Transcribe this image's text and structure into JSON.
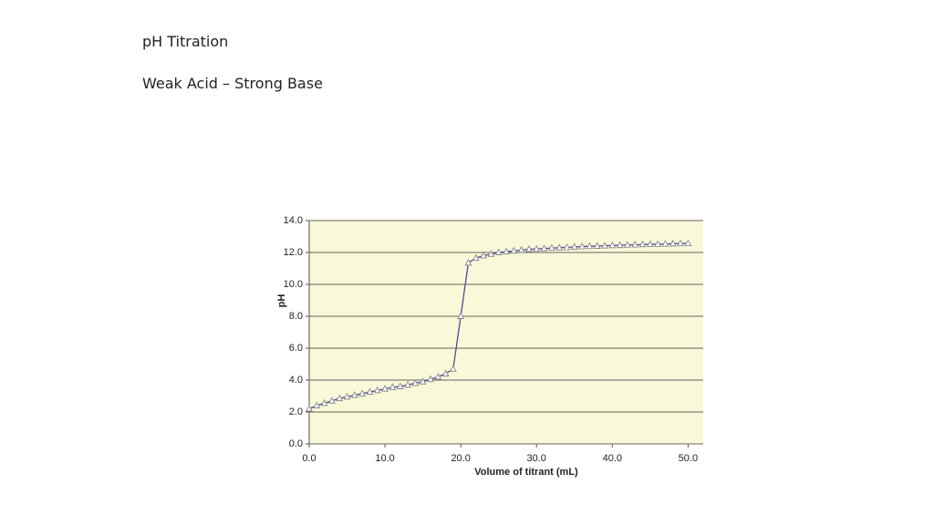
{
  "slide": {
    "title": "pH Titration",
    "subtitle": "Weak Acid – Strong Base"
  },
  "chart_data": {
    "type": "line",
    "x_label": "Volume of titrant (mL)",
    "y_label": "pH",
    "x": [
      0,
      1,
      2,
      3,
      4,
      5,
      6,
      7,
      8,
      9,
      10,
      11,
      12,
      13,
      14,
      15,
      16,
      17,
      18,
      19,
      20,
      21,
      22,
      23,
      24,
      25,
      26,
      27,
      28,
      29,
      30,
      31,
      32,
      33,
      34,
      35,
      36,
      37,
      38,
      39,
      40,
      41,
      42,
      43,
      44,
      45,
      46,
      47,
      48,
      49,
      50
    ],
    "values": [
      2.2,
      2.4,
      2.55,
      2.7,
      2.85,
      2.95,
      3.05,
      3.15,
      3.25,
      3.35,
      3.45,
      3.55,
      3.6,
      3.7,
      3.8,
      3.9,
      4.05,
      4.2,
      4.4,
      4.7,
      8.0,
      11.35,
      11.65,
      11.8,
      11.9,
      12.0,
      12.05,
      12.1,
      12.15,
      12.2,
      12.22,
      12.25,
      12.28,
      12.3,
      12.32,
      12.35,
      12.37,
      12.39,
      12.4,
      12.42,
      12.44,
      12.45,
      12.47,
      12.48,
      12.5,
      12.51,
      12.52,
      12.53,
      12.55,
      12.56,
      12.57
    ],
    "color": "#4b4b9c",
    "marker_color": "#888888",
    "plot_background": "#f9f9d9",
    "xlim": [
      0,
      52
    ],
    "ylim": [
      0,
      14
    ],
    "xticks": [
      {
        "value": 0,
        "label": "0.0"
      },
      {
        "value": 10,
        "label": "10.0"
      },
      {
        "value": 20,
        "label": "20.0"
      },
      {
        "value": 30,
        "label": "30.0"
      },
      {
        "value": 40,
        "label": "40.0"
      },
      {
        "value": 50,
        "label": "50.0"
      }
    ],
    "yticks": [
      {
        "value": 0,
        "label": "0.0"
      },
      {
        "value": 2,
        "label": "2.0"
      },
      {
        "value": 4,
        "label": "4.0"
      },
      {
        "value": 6,
        "label": "6.0"
      },
      {
        "value": 8,
        "label": "8.0"
      },
      {
        "value": 10,
        "label": "10.0"
      },
      {
        "value": 12,
        "label": "12.0"
      },
      {
        "value": 14,
        "label": "14.0"
      }
    ],
    "grid": true
  }
}
